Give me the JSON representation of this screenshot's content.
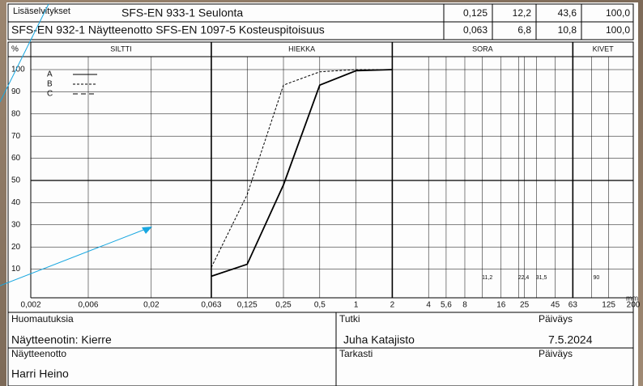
{
  "header": {
    "label": "Lisäselvitykset",
    "method1": "SFS-EN 933-1 Seulonta",
    "method2": "SFS-EN 932-1 Näytteenotto SFS-EN 1097-5 Kosteuspitoisuus",
    "table": [
      [
        "0,125",
        "12,2",
        "43,6",
        "100,0"
      ],
      [
        "0,063",
        "6,8",
        "10,8",
        "100,0"
      ]
    ]
  },
  "chart_data": {
    "type": "line",
    "x_scale": "log",
    "y_unit": "%",
    "x_unit": "mm",
    "zones": [
      {
        "label": "SILTTI",
        "range": [
          0.002,
          0.063
        ]
      },
      {
        "label": "HIEKKA",
        "range": [
          0.063,
          2
        ]
      },
      {
        "label": "SORA",
        "range": [
          2,
          63
        ]
      },
      {
        "label": "KIVET",
        "range": [
          63,
          200
        ]
      }
    ],
    "xlim": [
      0.002,
      200
    ],
    "xticks": [
      {
        "value": 0.002,
        "label": "0,002"
      },
      {
        "value": 0.006,
        "label": "0,006"
      },
      {
        "value": 0.02,
        "label": "0,02"
      },
      {
        "value": 0.063,
        "label": "0,063"
      },
      {
        "value": 0.125,
        "label": "0,125"
      },
      {
        "value": 0.25,
        "label": "0,25"
      },
      {
        "value": 0.5,
        "label": "0,5"
      },
      1,
      2,
      4,
      {
        "value": 5.6,
        "label": "5,6"
      },
      8,
      16,
      25,
      45,
      63,
      125,
      200
    ],
    "minor_xticks": [
      {
        "value": 11.2,
        "label": "11,2"
      },
      {
        "value": 22.4,
        "label": "22,4"
      },
      {
        "value": 31.5,
        "label": "31,5"
      },
      90
    ],
    "ylim": [
      0,
      100
    ],
    "yticks": [
      10,
      20,
      30,
      40,
      50,
      60,
      70,
      80,
      90,
      100
    ],
    "grid": true,
    "x": [
      0.063,
      0.125,
      0.25,
      0.5,
      1,
      2
    ],
    "series": [
      {
        "name": "A",
        "color": "#000000",
        "style": "solid",
        "values": [
          6.8,
          12.2,
          48,
          93,
          99.5,
          100
        ]
      },
      {
        "name": "B",
        "color": "#000000",
        "style": "dotted",
        "values": [
          10.8,
          43.6,
          93,
          99,
          100,
          100
        ]
      },
      {
        "name": "C",
        "color": "#000000",
        "style": "dashed",
        "values": [
          null,
          null,
          null,
          null,
          null,
          null
        ]
      }
    ]
  },
  "footer": {
    "remarks_label": "Huomautuksia",
    "remarks": "Näytteenotin: Kierre",
    "sampling_label": "Näytteenotto",
    "sampler": "Harri Heino",
    "examined_label": "Tutki",
    "examiner": "Juha Katajisto",
    "checked_label": "Tarkasti",
    "date_label": "Päiväys",
    "date": "7.5.2024",
    "date2_label": "Päiväys"
  }
}
